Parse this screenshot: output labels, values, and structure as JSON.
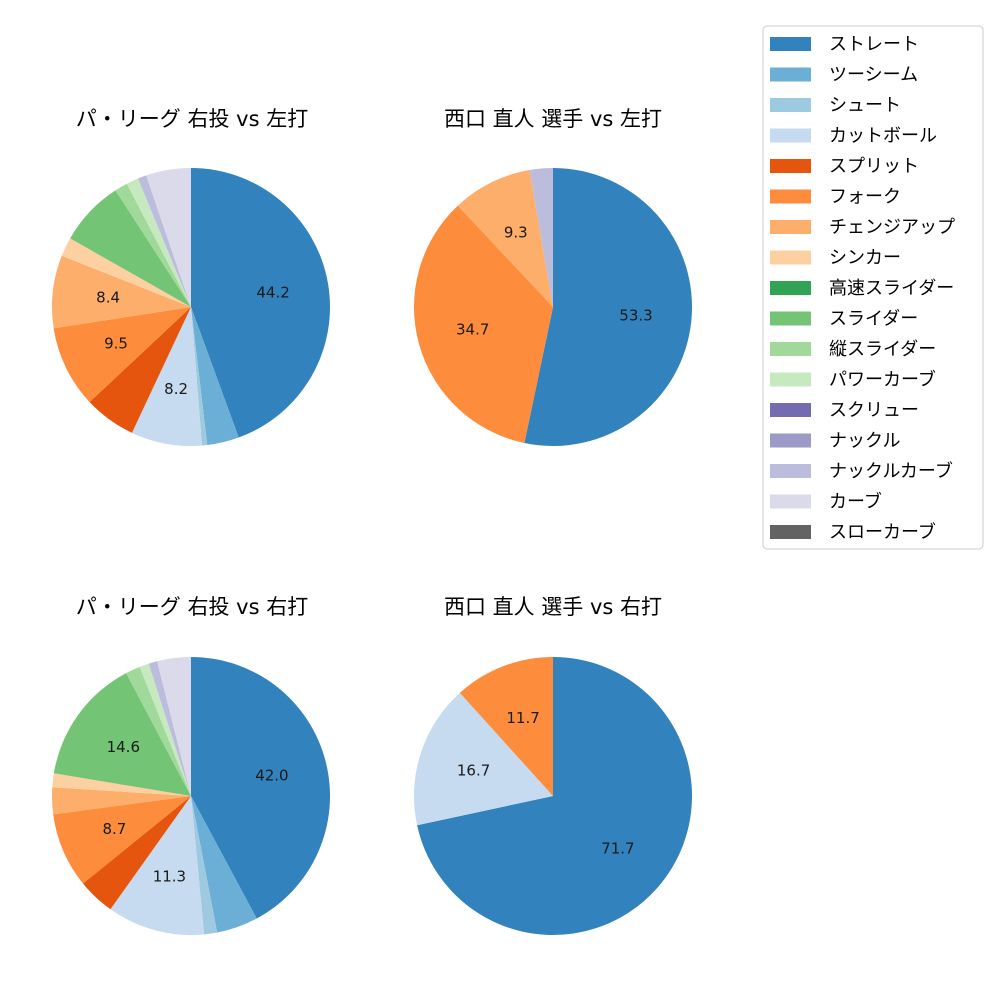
{
  "legend": {
    "items": [
      {
        "label": "ストレート",
        "color": "#3182bd"
      },
      {
        "label": "ツーシーム",
        "color": "#6baed6"
      },
      {
        "label": "シュート",
        "color": "#9ecae1"
      },
      {
        "label": "カットボール",
        "color": "#c6dbef"
      },
      {
        "label": "スプリット",
        "color": "#e6550d"
      },
      {
        "label": "フォーク",
        "color": "#fd8d3c"
      },
      {
        "label": "チェンジアップ",
        "color": "#fdae6b"
      },
      {
        "label": "シンカー",
        "color": "#fdd0a2"
      },
      {
        "label": "高速スライダー",
        "color": "#31a354"
      },
      {
        "label": "スライダー",
        "color": "#74c476"
      },
      {
        "label": "縦スライダー",
        "color": "#a1d99b"
      },
      {
        "label": "パワーカーブ",
        "color": "#c7e9c0"
      },
      {
        "label": "スクリュー",
        "color": "#756bb1"
      },
      {
        "label": "ナックル",
        "color": "#9e9ac8"
      },
      {
        "label": "ナックルカーブ",
        "color": "#bcbddc"
      },
      {
        "label": "カーブ",
        "color": "#dadaeb"
      },
      {
        "label": "スローカーブ",
        "color": "#636363"
      }
    ]
  },
  "chart_data": [
    {
      "type": "pie",
      "title": "パ・リーグ 右投 vs 左打",
      "slices": [
        {
          "label": "ストレート",
          "value": 44.2,
          "show": "44.2"
        },
        {
          "label": "ツーシーム",
          "value": 3.7
        },
        {
          "label": "シュート",
          "value": 0.6
        },
        {
          "label": "カットボール",
          "value": 8.2,
          "show": "8.2"
        },
        {
          "label": "スプリット",
          "value": 6.0
        },
        {
          "label": "フォーク",
          "value": 9.5,
          "show": "9.5"
        },
        {
          "label": "チェンジアップ",
          "value": 8.4,
          "show": "8.4"
        },
        {
          "label": "シンカー",
          "value": 2.2
        },
        {
          "label": "スライダー",
          "value": 7.6
        },
        {
          "label": "縦スライダー",
          "value": 1.5
        },
        {
          "label": "パワーカーブ",
          "value": 1.4
        },
        {
          "label": "ナックルカーブ",
          "value": 1.0
        },
        {
          "label": "カーブ",
          "value": 5.2
        }
      ]
    },
    {
      "type": "pie",
      "title": "西口 直人 選手 vs 左打",
      "slices": [
        {
          "label": "ストレート",
          "value": 53.3,
          "show": "53.3"
        },
        {
          "label": "フォーク",
          "value": 34.7,
          "show": "34.7"
        },
        {
          "label": "チェンジアップ",
          "value": 9.3,
          "show": "9.3"
        },
        {
          "label": "ナックルカーブ",
          "value": 2.7
        }
      ]
    },
    {
      "type": "pie",
      "title": "パ・リーグ 右投 vs 右打",
      "slices": [
        {
          "label": "ストレート",
          "value": 42.0,
          "show": "42.0"
        },
        {
          "label": "ツーシーム",
          "value": 4.8
        },
        {
          "label": "シュート",
          "value": 1.5
        },
        {
          "label": "カットボール",
          "value": 11.3,
          "show": "11.3"
        },
        {
          "label": "スプリット",
          "value": 4.3
        },
        {
          "label": "フォーク",
          "value": 8.7,
          "show": "8.7"
        },
        {
          "label": "チェンジアップ",
          "value": 3.1
        },
        {
          "label": "シンカー",
          "value": 1.6
        },
        {
          "label": "スライダー",
          "value": 14.6,
          "show": "14.6"
        },
        {
          "label": "縦スライダー",
          "value": 1.7
        },
        {
          "label": "パワーカーブ",
          "value": 1.1
        },
        {
          "label": "ナックルカーブ",
          "value": 1.0
        },
        {
          "label": "カーブ",
          "value": 3.9
        }
      ]
    },
    {
      "type": "pie",
      "title": "西口 直人 選手 vs 右打",
      "slices": [
        {
          "label": "ストレート",
          "value": 71.7,
          "show": "71.7"
        },
        {
          "label": "カットボール",
          "value": 16.7,
          "show": "16.7"
        },
        {
          "label": "フォーク",
          "value": 11.7,
          "show": "11.7"
        }
      ]
    }
  ]
}
